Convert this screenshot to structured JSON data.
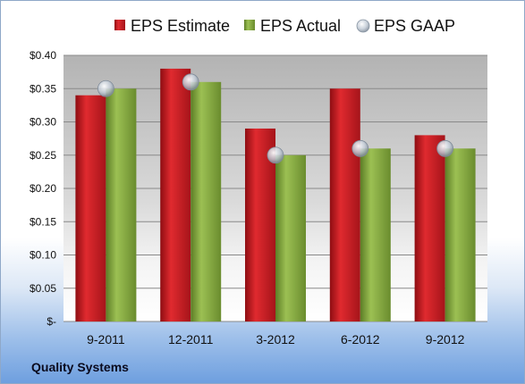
{
  "footer": {
    "company": "Quality Systems"
  },
  "colors": {
    "estimate": "#c8161d",
    "actual": "#7ea33a",
    "gaap": "#b9c3cf"
  },
  "chart_data": {
    "type": "bar",
    "title": "",
    "xlabel": "",
    "ylabel": "",
    "categories": [
      "9-2011",
      "12-2011",
      "3-2012",
      "6-2012",
      "9-2012"
    ],
    "y_tick_labels": [
      "$-",
      "$0.05",
      "$0.10",
      "$0.15",
      "$0.20",
      "$0.25",
      "$0.30",
      "$0.35",
      "$0.40"
    ],
    "ylim": [
      0,
      0.4
    ],
    "grid": true,
    "legend_position": "top",
    "series": [
      {
        "name": "EPS Estimate",
        "type": "bar",
        "values": [
          0.34,
          0.38,
          0.29,
          0.35,
          0.28
        ]
      },
      {
        "name": "EPS Actual",
        "type": "bar",
        "values": [
          0.35,
          0.36,
          0.25,
          0.26,
          0.26
        ]
      },
      {
        "name": "EPS GAAP",
        "type": "scatter",
        "values": [
          0.35,
          0.36,
          0.25,
          0.26,
          0.26
        ]
      }
    ]
  }
}
